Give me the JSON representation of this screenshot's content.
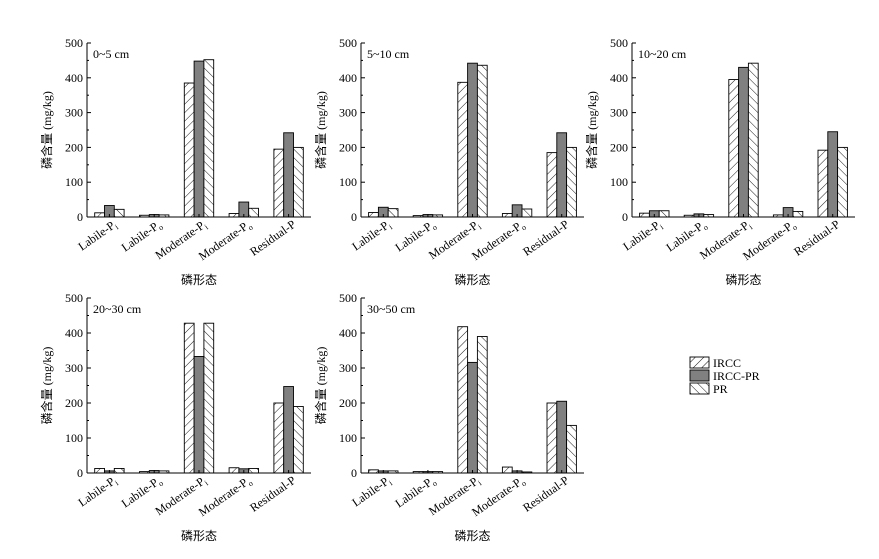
{
  "chart_data": [
    {
      "type": "bar",
      "title": "0~5 cm",
      "xlabel": "磷形态",
      "ylabel": "磷含量 (mg/kg)",
      "ylim": [
        0,
        500
      ],
      "yticks": [
        0,
        100,
        200,
        300,
        400,
        500
      ],
      "categories": [
        "Labile-Pi",
        "Labile-Po",
        "Moderate-Pi",
        "Moderate-Po",
        "Residual-P"
      ],
      "series": [
        {
          "name": "IRCC",
          "values": [
            12,
            5,
            385,
            10,
            195
          ]
        },
        {
          "name": "IRCC-PR",
          "values": [
            33,
            7,
            448,
            43,
            242
          ]
        },
        {
          "name": "PR",
          "values": [
            22,
            6,
            452,
            25,
            200
          ]
        }
      ]
    },
    {
      "type": "bar",
      "title": "5~10 cm",
      "xlabel": "磷形态",
      "ylabel": "磷含量 (mg/kg)",
      "ylim": [
        0,
        500
      ],
      "yticks": [
        0,
        100,
        200,
        300,
        400,
        500
      ],
      "categories": [
        "Labile-Pi",
        "Labile-Po",
        "Moderate-Pi",
        "Moderate-Po",
        "Residual-P"
      ],
      "series": [
        {
          "name": "IRCC",
          "values": [
            13,
            4,
            387,
            10,
            185
          ]
        },
        {
          "name": "IRCC-PR",
          "values": [
            28,
            7,
            442,
            35,
            242
          ]
        },
        {
          "name": "PR",
          "values": [
            24,
            6,
            436,
            23,
            200
          ]
        }
      ]
    },
    {
      "type": "bar",
      "title": "10~20 cm",
      "xlabel": "磷形态",
      "ylabel": "磷含量 (mg/kg)",
      "ylim": [
        0,
        500
      ],
      "yticks": [
        0,
        100,
        200,
        300,
        400,
        500
      ],
      "categories": [
        "Labile-Pi",
        "Labile-Po",
        "Moderate-Pi",
        "Moderate-Po",
        "Residual-P"
      ],
      "series": [
        {
          "name": "IRCC",
          "values": [
            11,
            5,
            395,
            6,
            192
          ]
        },
        {
          "name": "IRCC-PR",
          "values": [
            18,
            9,
            430,
            27,
            245
          ]
        },
        {
          "name": "PR",
          "values": [
            18,
            7,
            442,
            16,
            200
          ]
        }
      ]
    },
    {
      "type": "bar",
      "title": "20~30 cm",
      "xlabel": "磷形态",
      "ylabel": "磷含量 (mg/kg)",
      "ylim": [
        0,
        500
      ],
      "yticks": [
        0,
        100,
        200,
        300,
        400,
        500
      ],
      "categories": [
        "Labile-Pi",
        "Labile-Po",
        "Moderate-Pi",
        "Moderate-Po",
        "Residual-P"
      ],
      "series": [
        {
          "name": "IRCC",
          "values": [
            13,
            4,
            428,
            15,
            200
          ]
        },
        {
          "name": "IRCC-PR",
          "values": [
            6,
            7,
            333,
            12,
            247
          ]
        },
        {
          "name": "PR",
          "values": [
            13,
            6,
            428,
            13,
            190
          ]
        }
      ]
    },
    {
      "type": "bar",
      "title": "30~50 cm",
      "xlabel": "磷形态",
      "ylabel": "磷含量 (mg/kg)",
      "ylim": [
        0,
        500
      ],
      "yticks": [
        0,
        100,
        200,
        300,
        400,
        500
      ],
      "categories": [
        "Labile-Pi",
        "Labile-Po",
        "Moderate-Pi",
        "Moderate-Po",
        "Residual-P"
      ],
      "series": [
        {
          "name": "IRCC",
          "values": [
            9,
            4,
            418,
            17,
            200
          ]
        },
        {
          "name": "IRCC-PR",
          "values": [
            6,
            4,
            316,
            6,
            205
          ]
        },
        {
          "name": "PR",
          "values": [
            6,
            4,
            390,
            3,
            136
          ]
        }
      ]
    }
  ],
  "legend": {
    "placement": "right",
    "entries": [
      {
        "label": "IRCC",
        "pattern": "hatch-forward"
      },
      {
        "label": "IRCC-PR",
        "pattern": "solid-gray"
      },
      {
        "label": "PR",
        "pattern": "hatch-backward"
      }
    ]
  },
  "tick_labels": {
    "Labile-Pi": {
      "main": "Labile-P",
      "sub": "i"
    },
    "Labile-Po": {
      "main": "Labile-P",
      "sub": "o"
    },
    "Moderate-Pi": {
      "main": "Moderate-P",
      "sub": "i"
    },
    "Moderate-Po": {
      "main": "Moderate-P",
      "sub": "o"
    },
    "Residual-P": {
      "main": "Residual-P",
      "sub": ""
    }
  },
  "colors": {
    "axis": "#000000",
    "solid_fill": "#808080",
    "hatch_stroke": "#000000"
  }
}
